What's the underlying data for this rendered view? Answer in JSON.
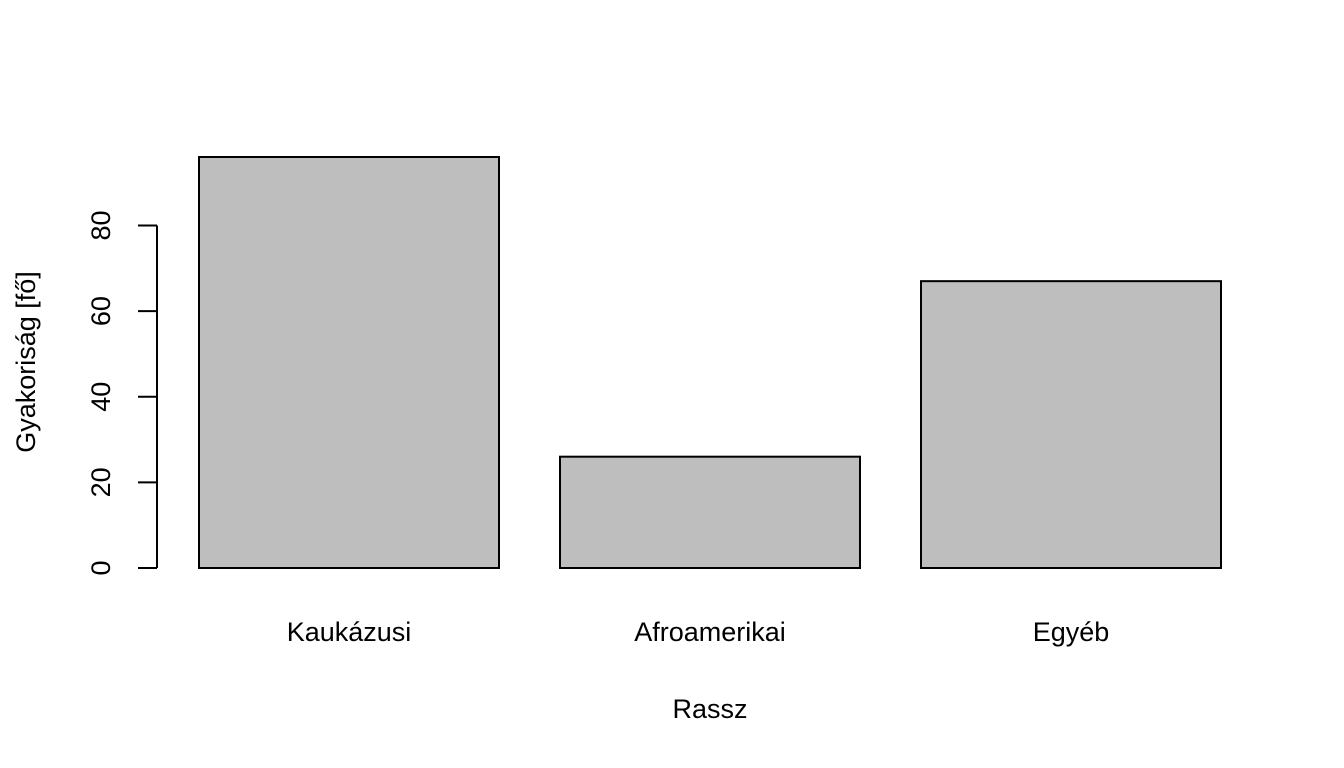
{
  "chart_data": {
    "type": "bar",
    "title": "",
    "xlabel": "Rassz",
    "ylabel": "Gyakoriság [fő]",
    "categories": [
      "Kaukázusi",
      "Afroamerikai",
      "Egyéb"
    ],
    "values": [
      96,
      26,
      67
    ],
    "yticks": [
      0,
      20,
      40,
      60,
      80
    ],
    "ylim": [
      0,
      96
    ],
    "bar_color": "#bebebe",
    "grid": false,
    "legend": "none"
  }
}
